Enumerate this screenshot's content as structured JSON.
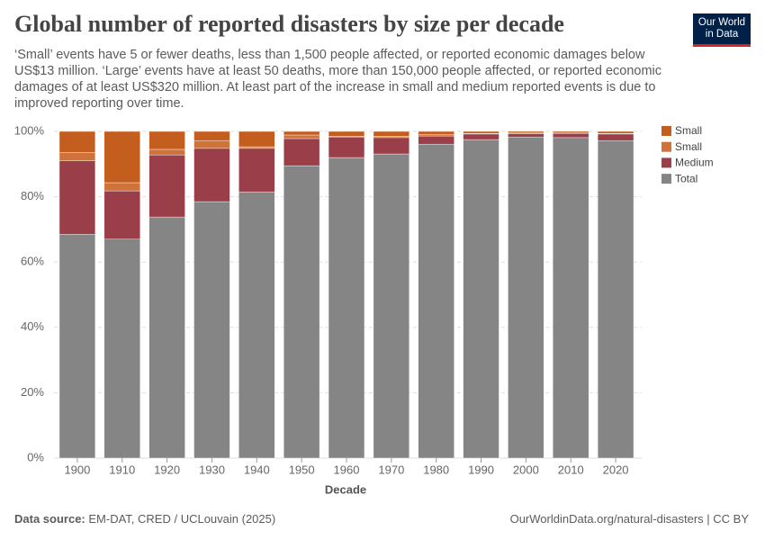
{
  "header": {
    "title": "Global number of reported disasters by size per decade",
    "subtitle": "‘Small’ events have 5 or fewer deaths, less than 1,500 people affected, or reported economic damages below US$13 million. ‘Large’ events have at least 50 deaths, more than 150,000 people affected, or reported economic damages of at least US$320 million. At least part of the increase in small and medium reported events is due to improved reporting over time.",
    "logo": [
      "Our World",
      "in Data"
    ]
  },
  "chart_data": {
    "type": "stacked_bar",
    "x_label": "Decade",
    "categories": [
      "1900",
      "1910",
      "1920",
      "1930",
      "1940",
      "1950",
      "1960",
      "1970",
      "1980",
      "1990",
      "2000",
      "2010",
      "2020"
    ],
    "series": [
      {
        "name": "Small",
        "color": "#c45e1f",
        "values": [
          6.5,
          15.7,
          5.5,
          2.8,
          4.7,
          1.1,
          1.5,
          1.5,
          1.0,
          0.6,
          0.5,
          0.5,
          0.6
        ]
      },
      {
        "name": "Small",
        "color": "#cf733a",
        "values": [
          2.5,
          2.5,
          1.7,
          2.4,
          0.5,
          1.1,
          0.2,
          0.4,
          0.4,
          0.2,
          0.2,
          0.1,
          0.2
        ]
      },
      {
        "name": "Medium",
        "color": "#9a3e4a",
        "values": [
          22.5,
          14.8,
          19.0,
          16.3,
          13.3,
          8.3,
          6.3,
          5.0,
          2.5,
          1.7,
          1.0,
          1.3,
          2.0
        ]
      },
      {
        "name": "Total",
        "color": "#858585",
        "values": [
          68.5,
          67.0,
          73.8,
          78.5,
          81.5,
          89.5,
          92.0,
          93.1,
          96.1,
          97.5,
          98.3,
          98.1,
          97.2
        ]
      }
    ],
    "ylim": [
      0,
      100
    ],
    "yticks": [
      {
        "value": 0,
        "label": "0%"
      },
      {
        "value": 20,
        "label": "20%"
      },
      {
        "value": 40,
        "label": "40%"
      },
      {
        "value": 60,
        "label": "60%"
      },
      {
        "value": 80,
        "label": "80%"
      },
      {
        "value": 100,
        "label": "100%"
      }
    ],
    "grid": true
  },
  "footer": {
    "source_label": "Data source:",
    "source": "EM-DAT, CRED / UCLouvain (2025)",
    "url": "OurWorldinData.org/natural-disasters | CC BY"
  }
}
